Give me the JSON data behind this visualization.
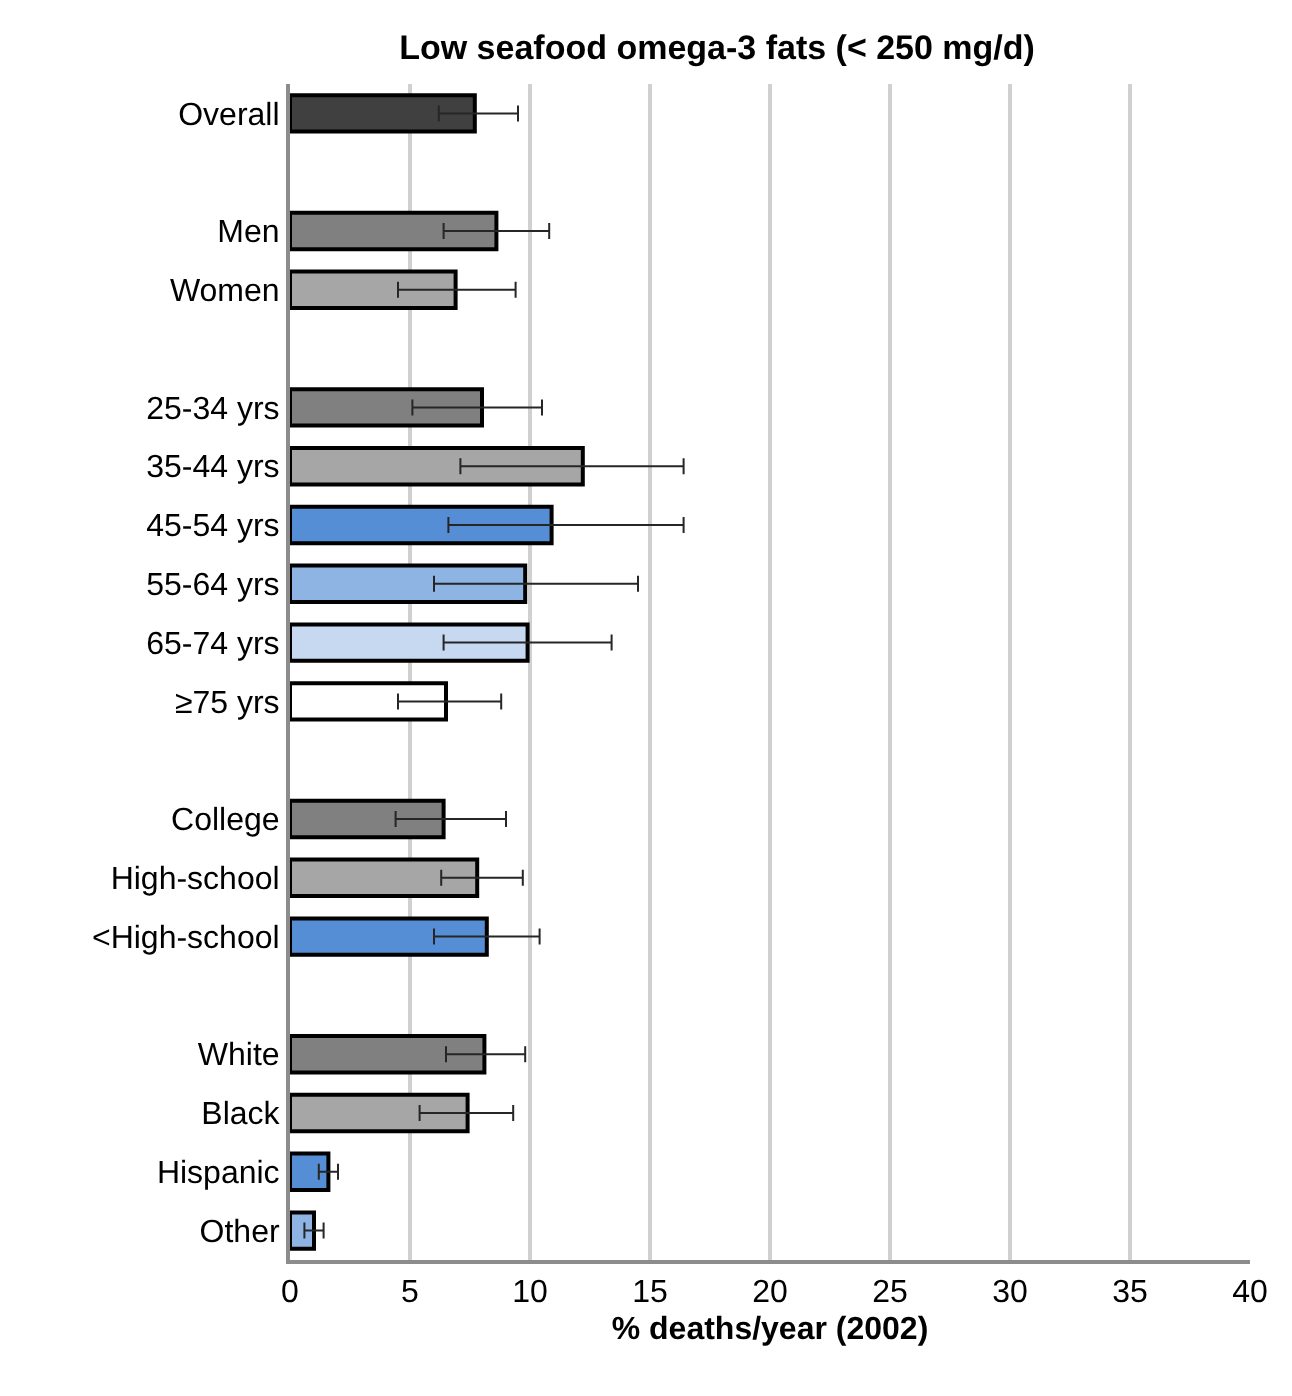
{
  "chart_data": {
    "type": "bar",
    "orientation": "horizontal",
    "title": "Low seafood omega-3 fats (< 250 mg/d)",
    "xlabel": "% deaths/year (2002)",
    "categories": [
      "Overall",
      null,
      "Men",
      "Women",
      null,
      "25-34 yrs",
      "35-44 yrs",
      "45-54 yrs",
      "55-64 yrs",
      "65-74 yrs",
      "≥75 yrs",
      null,
      "College",
      "High-school",
      "<High-school",
      null,
      "White",
      "Black",
      "Hispanic",
      "Other"
    ],
    "values": [
      7.7,
      null,
      8.6,
      6.9,
      null,
      8.0,
      12.2,
      10.9,
      9.8,
      9.9,
      6.5,
      null,
      6.4,
      7.8,
      8.2,
      null,
      8.1,
      7.4,
      1.6,
      1.0
    ],
    "errors": [
      [
        6.2,
        9.5
      ],
      null,
      [
        6.4,
        10.8
      ],
      [
        4.5,
        9.4
      ],
      null,
      [
        5.1,
        10.5
      ],
      [
        7.1,
        16.4
      ],
      [
        6.6,
        16.4
      ],
      [
        6.0,
        14.5
      ],
      [
        6.4,
        13.4
      ],
      [
        4.5,
        8.8
      ],
      null,
      [
        4.4,
        9.0
      ],
      [
        6.3,
        9.7
      ],
      [
        6.0,
        10.4
      ],
      null,
      [
        6.5,
        9.8
      ],
      [
        5.4,
        9.3
      ],
      [
        1.2,
        2.0
      ],
      [
        0.6,
        1.4
      ]
    ],
    "colors": [
      "#404040",
      "#ffffff",
      "#808080",
      "#a6a6a6",
      "#ffffff",
      "#808080",
      "#a6a6a6",
      "#558ed5",
      "#8eb4e3",
      "#c6d9f1",
      "#ffffff",
      "#ffffff",
      "#808080",
      "#a6a6a6",
      "#558ed5",
      "#ffffff",
      "#808080",
      "#a6a6a6",
      "#558ed5",
      "#8eb4e3"
    ],
    "xlim": [
      0,
      40
    ],
    "xticks": [
      0,
      5,
      10,
      15,
      20,
      25,
      30,
      35,
      40
    ],
    "grid": "x"
  }
}
